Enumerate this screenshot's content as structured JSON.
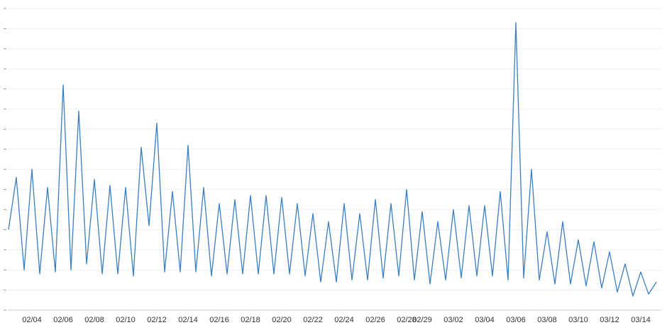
{
  "chart_data": {
    "type": "line",
    "color": "#3a7fc1",
    "grid": true,
    "ylim": [
      0,
      15
    ],
    "yticks": [
      0,
      1,
      2,
      3,
      4,
      5,
      6,
      7,
      8,
      9,
      10,
      11,
      12,
      13,
      14,
      15
    ],
    "categories": [
      null,
      null,
      null,
      "02/04",
      null,
      null,
      null,
      "02/06",
      null,
      null,
      null,
      "02/08",
      null,
      null,
      null,
      "02/10",
      null,
      null,
      null,
      "02/12",
      null,
      null,
      null,
      "02/14",
      null,
      null,
      null,
      "02/16",
      null,
      null,
      null,
      "02/18",
      null,
      null,
      null,
      "02/20",
      null,
      null,
      null,
      "02/22",
      null,
      null,
      null,
      "02/24",
      null,
      null,
      null,
      "02/26",
      null,
      null,
      null,
      "02/28",
      null,
      "02/29",
      null,
      null,
      null,
      "03/02",
      null,
      null,
      null,
      "03/04",
      null,
      null,
      null,
      "03/06",
      null,
      null,
      null,
      "03/08",
      null,
      null,
      null,
      "03/10",
      null,
      null,
      null,
      "03/12",
      null,
      null,
      null,
      "03/14",
      null,
      null
    ],
    "values": [
      4.0,
      6.6,
      2.0,
      7.0,
      1.8,
      6.1,
      1.9,
      11.2,
      2.0,
      9.9,
      2.3,
      6.5,
      1.8,
      6.2,
      1.8,
      6.1,
      1.7,
      8.1,
      4.2,
      9.3,
      1.9,
      5.9,
      1.9,
      8.2,
      1.9,
      6.1,
      1.7,
      5.3,
      1.8,
      5.5,
      1.8,
      5.7,
      1.8,
      5.7,
      1.8,
      5.6,
      1.8,
      5.3,
      1.7,
      4.8,
      1.4,
      4.4,
      1.4,
      5.3,
      1.5,
      4.8,
      1.5,
      5.5,
      1.6,
      5.3,
      1.7,
      6.0,
      1.5,
      4.9,
      1.3,
      4.4,
      1.5,
      5.0,
      1.6,
      5.2,
      1.7,
      5.2,
      1.7,
      5.9,
      1.5,
      14.3,
      1.6,
      7.0,
      1.5,
      3.9,
      1.3,
      4.4,
      1.3,
      3.5,
      1.2,
      3.4,
      1.1,
      2.9,
      0.9,
      2.3,
      0.7,
      1.9,
      0.8,
      1.4
    ]
  }
}
